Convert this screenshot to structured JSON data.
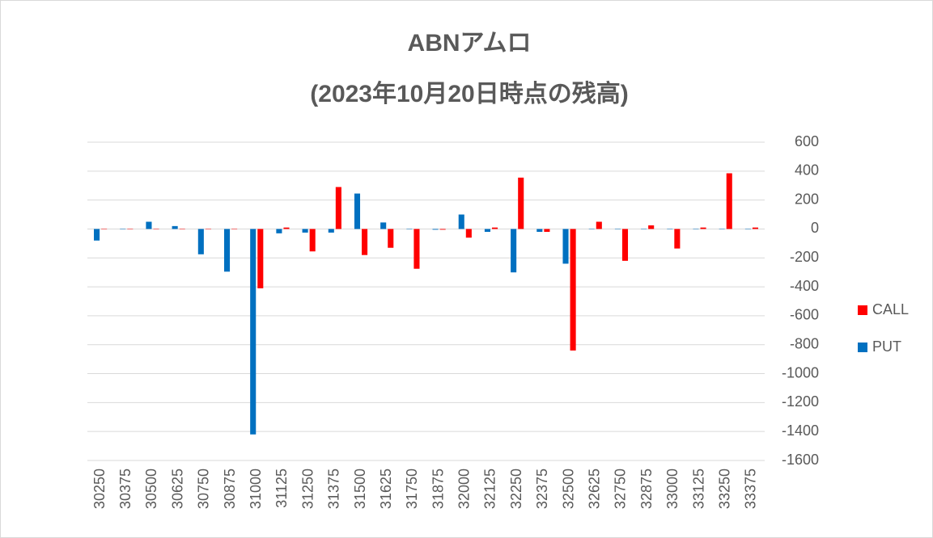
{
  "chart_data": {
    "type": "bar",
    "title": "ABNアムロ",
    "subtitle": "(2023年10月20日時点の残高)",
    "categories": [
      "30250",
      "30375",
      "30500",
      "30625",
      "30750",
      "30875",
      "31000",
      "31125",
      "31250",
      "31375",
      "31500",
      "31625",
      "31750",
      "31875",
      "32000",
      "32125",
      "32250",
      "32375",
      "32500",
      "32625",
      "32750",
      "32875",
      "33000",
      "33125",
      "33250",
      "33375"
    ],
    "series": [
      {
        "name": "CALL",
        "color": "#ff0000",
        "values": [
          0,
          0,
          0,
          0,
          0,
          0,
          -410,
          10,
          -155,
          290,
          -180,
          -130,
          -275,
          -5,
          -60,
          10,
          355,
          -20,
          -840,
          50,
          -220,
          25,
          -135,
          10,
          385,
          10
        ]
      },
      {
        "name": "PUT",
        "color": "#0070c0",
        "values": [
          -80,
          0,
          50,
          20,
          -175,
          -295,
          -1420,
          -30,
          -25,
          -25,
          245,
          45,
          0,
          -5,
          100,
          -20,
          -300,
          -20,
          -240,
          0,
          0,
          0,
          0,
          0,
          0,
          0
        ]
      }
    ],
    "ylim": [
      -1600,
      600
    ],
    "yticks": [
      -1600,
      -1400,
      -1200,
      -1000,
      -800,
      -600,
      -400,
      -200,
      0,
      200,
      400,
      600
    ],
    "grid": true,
    "legend": "right"
  }
}
